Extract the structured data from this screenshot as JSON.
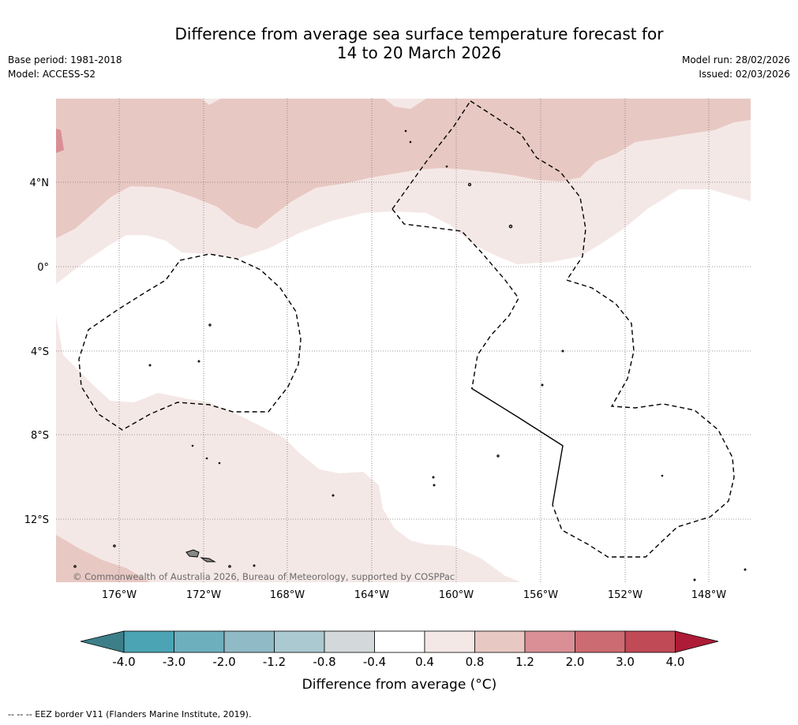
{
  "title": {
    "line1": "Difference from average sea surface temperature forecast for",
    "line2": "14 to 20 March 2026"
  },
  "meta": {
    "base_period": "Base period: 1981-2018",
    "model": "Model: ACCESS-S2",
    "model_run": "Model run: 28/02/2026",
    "issued": "Issued: 02/03/2026"
  },
  "map": {
    "longitude_labels": [
      "176°W",
      "172°W",
      "168°W",
      "164°W",
      "160°W",
      "156°W",
      "152°W",
      "148°W"
    ],
    "latitude_labels": [
      "4°N",
      "0°",
      "4°S",
      "8°S",
      "12°S"
    ],
    "copyright": "© Commonwealth of Australia 2026, Bureau of Meteorology, supported by COSPPac",
    "shading_colors": {
      "0.4_to_0.8": "#f4e8e6",
      "0.8_to_1.2": "#e8c8c3",
      "1.2_to_2.0": "#d98f95"
    }
  },
  "colorbar": {
    "label": "Difference from average (°C)",
    "ticks": [
      "-4.0",
      "-3.0",
      "-2.0",
      "-1.2",
      "-0.8",
      "-0.4",
      "0.4",
      "0.8",
      "1.2",
      "2.0",
      "3.0",
      "4.0"
    ],
    "colors": [
      "#3d7f89",
      "#4ba4b4",
      "#6eafbd",
      "#8fbac6",
      "#aac9d0",
      "#d3d8da",
      "#ffffff",
      "#f4e8e6",
      "#e8c8c3",
      "#d98f95",
      "#cc6b72",
      "#c04a56",
      "#ad1b37"
    ]
  },
  "footer": {
    "eez_note": "--  --  -- EEZ border V11 (Flanders Marine Institute, 2019)."
  }
}
